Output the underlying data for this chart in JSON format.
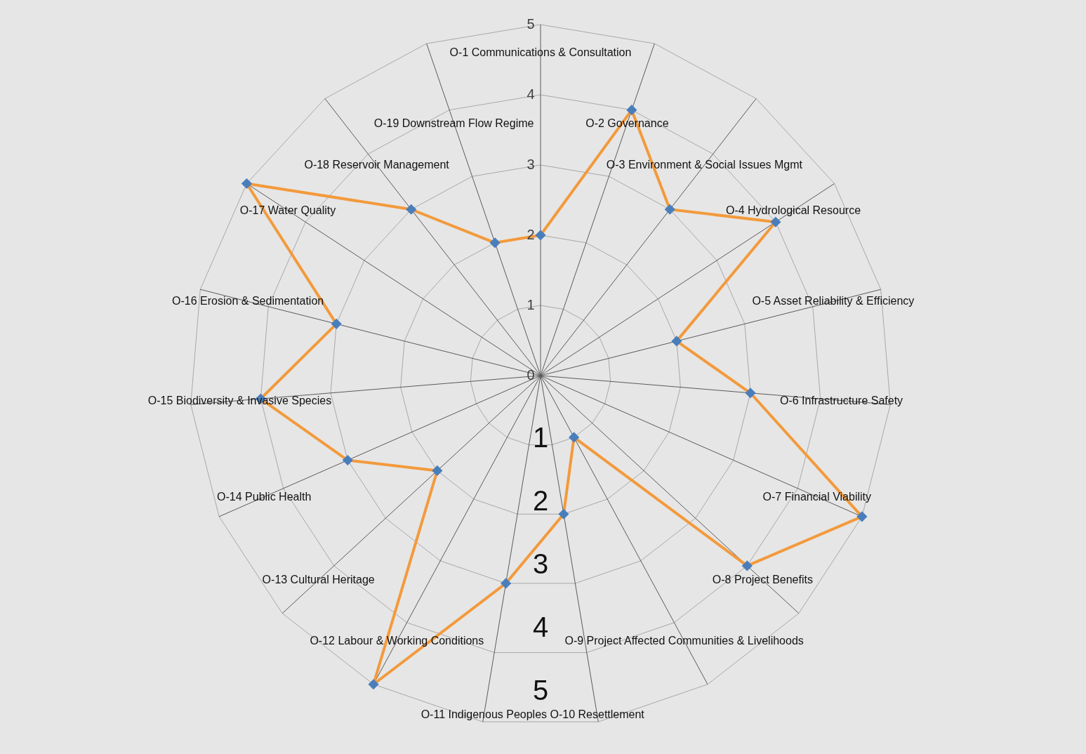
{
  "chart_data": {
    "type": "radar",
    "categories": [
      "O-1  Communications & Consultation",
      "O-2  Governance",
      "O-3  Environment & Social Issues Mgmt",
      "O-4  Hydrological Resource",
      "O-5  Asset Reliability & Efficiency",
      "O-6  Infrastructure Safety",
      "O-7  Financial Viability",
      "O-8  Project Benefits",
      "O-9  Project Affected Communities  & Livelihoods",
      "O-10  Resettlement",
      "O-11  Indigenous Peoples",
      "O-12  Labour & Working Conditions",
      "O-13  Cultural Heritage",
      "O-14  Public Health",
      "O-15  Biodiversity & Invasive Species",
      "O-16  Erosion & Sedimentation",
      "O-17  Water Quality",
      "O-18  Reservoir Management",
      "O-19  Downstream Flow Regime"
    ],
    "series": [
      {
        "color": "#f39a3c",
        "values": [
          2,
          4,
          3,
          4,
          2,
          3,
          5,
          4,
          1,
          2,
          3,
          5,
          2,
          3,
          4,
          3,
          5,
          3,
          2
        ]
      }
    ],
    "ylim": [
      0,
      5
    ],
    "yticks": [
      0,
      1,
      2,
      3,
      4,
      5
    ],
    "grid": true,
    "marker": "diamond",
    "annotations": [
      "1",
      "2",
      "3",
      "4",
      "5"
    ]
  }
}
